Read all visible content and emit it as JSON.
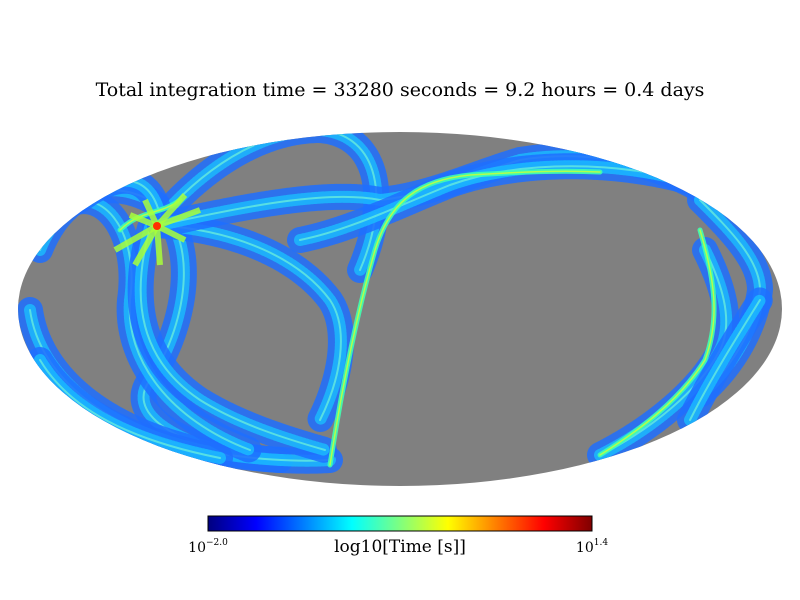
{
  "chart_data": {
    "type": "heatmap",
    "projection": "mollweide",
    "title": "Total integration time = 33280 seconds = 9.2 hours = 0.4 days",
    "unseen_color": "#808080",
    "colormap": "jet",
    "colormap_stops": [
      "#00007f",
      "#0000ff",
      "#007fff",
      "#00ffff",
      "#7fff7f",
      "#ffff00",
      "#ff7f00",
      "#ff0000",
      "#7f0000"
    ],
    "colorbar": {
      "label": "log10[Time [s]]",
      "min_label": {
        "base": "10",
        "exponent": "−2.0"
      },
      "max_label": {
        "base": "10",
        "exponent": "1.4"
      },
      "range": [
        -2.0,
        1.4
      ],
      "scale": "log10",
      "orientation": "horizontal",
      "placement": "bottom"
    }
  }
}
